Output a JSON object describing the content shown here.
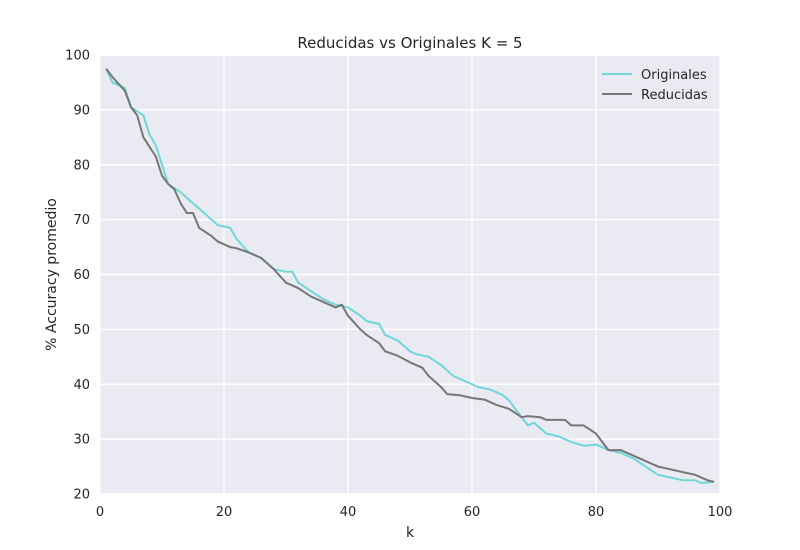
{
  "chart_data": {
    "type": "line",
    "title": "Reducidas vs Originales K = 5",
    "xlabel": "k",
    "ylabel": "% Accuracy promedio",
    "xlim": [
      0,
      100
    ],
    "ylim": [
      20,
      100
    ],
    "xticks": [
      0,
      20,
      40,
      60,
      80,
      100
    ],
    "yticks": [
      20,
      30,
      40,
      50,
      60,
      70,
      80,
      90,
      100
    ],
    "grid": true,
    "legend_position": "top-right",
    "background": "#EAEAF2",
    "series": [
      {
        "name": "Originales",
        "color": "#6FD6DA",
        "points": [
          [
            1,
            97.5
          ],
          [
            2,
            95
          ],
          [
            4,
            94
          ],
          [
            5,
            90.5
          ],
          [
            7,
            89
          ],
          [
            8,
            85.5
          ],
          [
            9,
            83.5
          ],
          [
            11,
            76.5
          ],
          [
            13,
            75
          ],
          [
            15,
            73
          ],
          [
            17,
            71
          ],
          [
            19,
            69
          ],
          [
            21,
            68.5
          ],
          [
            22,
            66.5
          ],
          [
            24,
            64
          ],
          [
            26,
            63
          ],
          [
            28,
            61
          ],
          [
            30,
            60.5
          ],
          [
            31,
            60.5
          ],
          [
            32,
            58.5
          ],
          [
            34,
            57
          ],
          [
            36,
            55.5
          ],
          [
            38,
            54.5
          ],
          [
            40,
            54
          ],
          [
            42,
            52.5
          ],
          [
            43,
            51.5
          ],
          [
            45,
            51
          ],
          [
            46,
            49
          ],
          [
            48,
            48
          ],
          [
            50,
            46
          ],
          [
            51,
            45.5
          ],
          [
            53,
            45
          ],
          [
            55,
            43.5
          ],
          [
            57,
            41.5
          ],
          [
            59,
            40.5
          ],
          [
            61,
            39.5
          ],
          [
            63,
            39
          ],
          [
            65,
            38
          ],
          [
            66,
            37
          ],
          [
            68,
            34
          ],
          [
            69,
            32.5
          ],
          [
            70,
            33
          ],
          [
            72,
            31
          ],
          [
            74,
            30.5
          ],
          [
            76,
            29.5
          ],
          [
            78,
            28.8
          ],
          [
            80,
            29
          ],
          [
            82,
            28
          ],
          [
            84,
            27.5
          ],
          [
            86,
            26.5
          ],
          [
            88,
            25
          ],
          [
            90,
            23.5
          ],
          [
            92,
            23
          ],
          [
            94,
            22.5
          ],
          [
            96,
            22.5
          ],
          [
            97,
            22
          ],
          [
            99,
            22.2
          ]
        ]
      },
      {
        "name": "Reducidas",
        "color": "#767676",
        "points": [
          [
            1,
            97.5
          ],
          [
            2,
            96
          ],
          [
            4,
            93.5
          ],
          [
            5,
            90.5
          ],
          [
            6,
            89
          ],
          [
            7,
            85
          ],
          [
            9,
            81.5
          ],
          [
            10,
            78
          ],
          [
            11,
            76.5
          ],
          [
            12,
            75.5
          ],
          [
            13,
            73
          ],
          [
            14,
            71.2
          ],
          [
            15,
            71.2
          ],
          [
            16,
            68.5
          ],
          [
            18,
            67
          ],
          [
            19,
            66
          ],
          [
            21,
            65
          ],
          [
            22,
            64.8
          ],
          [
            24,
            64
          ],
          [
            26,
            63
          ],
          [
            28,
            61
          ],
          [
            30,
            58.5
          ],
          [
            32,
            57.5
          ],
          [
            34,
            56
          ],
          [
            36,
            55
          ],
          [
            38,
            54
          ],
          [
            39,
            54.5
          ],
          [
            40,
            52.5
          ],
          [
            42,
            50
          ],
          [
            43,
            49
          ],
          [
            45,
            47.5
          ],
          [
            46,
            46
          ],
          [
            48,
            45.2
          ],
          [
            50,
            44
          ],
          [
            52,
            43
          ],
          [
            53,
            41.5
          ],
          [
            55,
            39.5
          ],
          [
            56,
            38.2
          ],
          [
            58,
            38
          ],
          [
            60,
            37.5
          ],
          [
            62,
            37.2
          ],
          [
            64,
            36.2
          ],
          [
            66,
            35.5
          ],
          [
            68,
            34
          ],
          [
            69,
            34.2
          ],
          [
            71,
            34
          ],
          [
            72,
            33.5
          ],
          [
            73,
            33.5
          ],
          [
            75,
            33.5
          ],
          [
            76,
            32.5
          ],
          [
            78,
            32.5
          ],
          [
            80,
            31
          ],
          [
            82,
            28
          ],
          [
            84,
            28
          ],
          [
            86,
            27
          ],
          [
            88,
            26
          ],
          [
            90,
            25
          ],
          [
            92,
            24.5
          ],
          [
            94,
            24
          ],
          [
            96,
            23.5
          ],
          [
            98,
            22.5
          ],
          [
            99,
            22.2
          ]
        ]
      }
    ]
  }
}
